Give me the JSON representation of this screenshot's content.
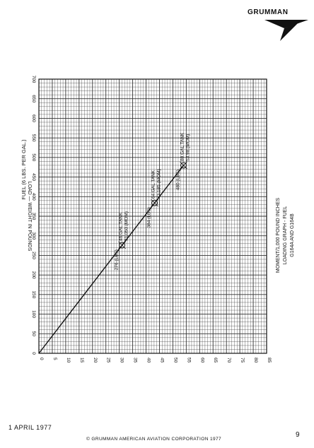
{
  "header": {
    "brand": "GRUMMAN"
  },
  "footer": {
    "date": "1 APRIL 1977",
    "copyright": "© GRUMMAN AMERICAN AVIATION CORPORATION 1977",
    "page_number": "9"
  },
  "colors": {
    "ink": "#111111",
    "grid": "#333333",
    "paper": "#ffffff"
  },
  "chart_data": {
    "type": "line",
    "title": "FUEL (6 LBS. PER GAL.)",
    "xlabel": "LOAD — WEIGHT IN POUNDS",
    "ylabel": "MOMENT/1,000 POUND INCHES",
    "caption_lines": [
      "MOMENT/1,000 POUND INCHES",
      "LOADING GRAPH - FUEL",
      "G164A AND G164B"
    ],
    "xlim": [
      0,
      700
    ],
    "ylim": [
      0,
      85
    ],
    "x_ticks": [
      0,
      50,
      100,
      150,
      200,
      250,
      300,
      350,
      400,
      450,
      500,
      550,
      600,
      650,
      700
    ],
    "y_ticks": [
      0,
      5,
      10,
      15,
      20,
      25,
      30,
      35,
      40,
      45,
      50,
      55,
      60,
      65,
      70,
      75,
      80,
      85
    ],
    "grid": true,
    "series": [
      {
        "x": [
          0,
          276,
          384,
          480
        ],
        "y": [
          0,
          31.05,
          43.2,
          53.98
        ]
      }
    ],
    "annotations": [
      {
        "x": 480,
        "y": 53.98,
        "lines": [
          "480 (LBS)",
          "80 GAL TANK",
          "53.98 (MOM)"
        ]
      },
      {
        "x": 384,
        "y": 43.2,
        "lines": [
          "384 (LBS)",
          "64 GAL TANK",
          "43,185 (MOM)"
        ]
      },
      {
        "x": 276,
        "y": 31.05,
        "lines": [
          "276 (LBS)",
          "46 GAL TANK",
          "31,050 (MOM)"
        ]
      }
    ]
  }
}
